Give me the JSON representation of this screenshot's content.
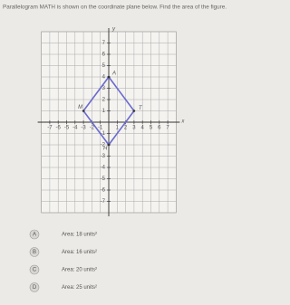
{
  "question": "Parallelogram MATH is shown on the coordinate plane below. Find the area of the figure.",
  "graph": {
    "x_label": "x",
    "y_label": "y",
    "xticks": [
      -7,
      -6,
      -5,
      -4,
      -3,
      -2,
      -1,
      1,
      2,
      3,
      4,
      5,
      6,
      7
    ],
    "yticks": [
      7,
      6,
      5,
      4,
      3,
      2,
      1,
      -1,
      -2,
      -3,
      -4,
      -5,
      -6,
      -7
    ],
    "vertices": [
      {
        "label": "A",
        "x": 0,
        "y": 4
      },
      {
        "label": "T",
        "x": 3,
        "y": 1
      },
      {
        "label": "H",
        "x": 0,
        "y": -2
      },
      {
        "label": "M",
        "x": -3,
        "y": 1
      }
    ],
    "shape_color": "#6a6ad0"
  },
  "options": [
    {
      "letter": "A",
      "text": "Area: 18 units²"
    },
    {
      "letter": "B",
      "text": "Area: 16 units²"
    },
    {
      "letter": "C",
      "text": "Area: 20 units²"
    },
    {
      "letter": "D",
      "text": "Area: 25 units²"
    }
  ]
}
